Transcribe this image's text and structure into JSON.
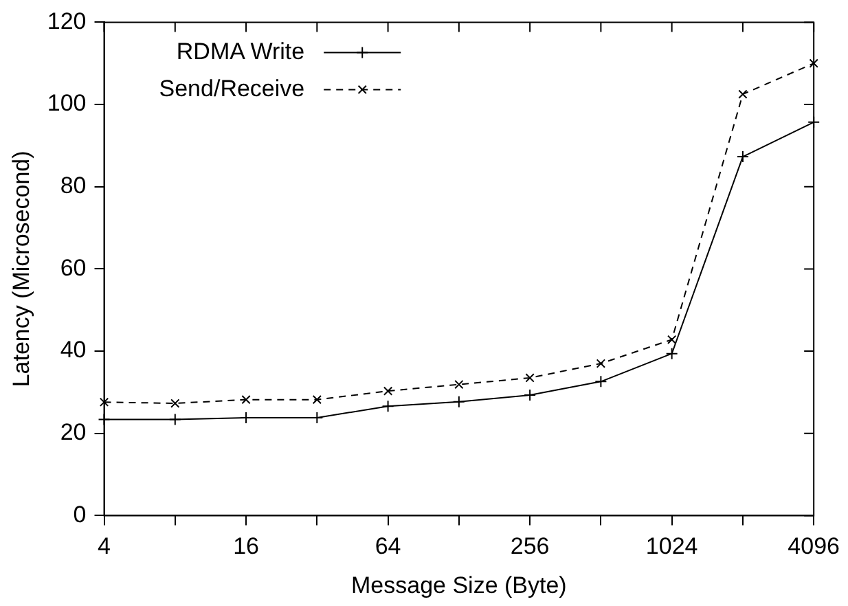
{
  "chart_data": {
    "type": "line",
    "xlabel": "Message Size (Byte)",
    "ylabel": "Latency (Microsecond)",
    "x": [
      4,
      8,
      16,
      32,
      64,
      128,
      256,
      512,
      1024,
      2048,
      4096
    ],
    "series": [
      {
        "name": "RDMA Write",
        "color": "#000000",
        "marker": "plus",
        "line_style": "solid",
        "values": [
          23.4,
          23.4,
          23.8,
          23.8,
          26.6,
          27.7,
          29.3,
          32.6,
          39.4,
          87.3,
          95.7
        ]
      },
      {
        "name": "Send/Receive",
        "color": "#000000",
        "marker": "cross",
        "line_style": "dashed",
        "values": [
          27.6,
          27.3,
          28.2,
          28.2,
          30.3,
          31.9,
          33.5,
          37.0,
          42.8,
          102.5,
          110.0
        ]
      }
    ],
    "log": "x",
    "xlim": [
      4,
      4096
    ],
    "xticks": [
      4,
      {
        "value": 8,
        "label": null
      },
      16,
      {
        "value": 32,
        "label": null
      },
      64,
      {
        "value": 128,
        "label": null
      },
      256,
      {
        "value": 512,
        "label": null
      },
      1024,
      {
        "value": 2048,
        "label": null
      },
      4096
    ],
    "ylim": [
      0,
      120
    ],
    "yticks": [
      0,
      20,
      40,
      60,
      80,
      100,
      120
    ],
    "grid": false,
    "legend": "top left"
  }
}
